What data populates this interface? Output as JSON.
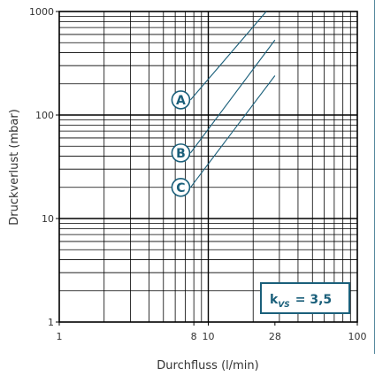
{
  "chart_data": {
    "type": "line",
    "xscale": "log",
    "yscale": "log",
    "xlabel": "Durchfluss (l/min)",
    "ylabel": "Druckverlust (mbar)",
    "xlim": [
      1,
      100
    ],
    "ylim": [
      1,
      1000
    ],
    "grid": true,
    "x_ticks": [
      {
        "value": 1,
        "label": "1"
      },
      {
        "value": 8,
        "label": "8"
      },
      {
        "value": 10,
        "label": "10"
      },
      {
        "value": 28,
        "label": "28"
      },
      {
        "value": 100,
        "label": "100"
      }
    ],
    "y_ticks": [
      {
        "value": 1,
        "label": "1"
      },
      {
        "value": 10,
        "label": "10"
      },
      {
        "value": 100,
        "label": "100"
      },
      {
        "value": 1000,
        "label": "1000"
      }
    ],
    "series": [
      {
        "name": "A",
        "points": [
          [
            7.6,
            140
          ],
          [
            24.5,
            1000
          ]
        ]
      },
      {
        "name": "B",
        "points": [
          [
            7.6,
            43
          ],
          [
            28,
            530
          ]
        ]
      },
      {
        "name": "C",
        "points": [
          [
            7.6,
            20
          ],
          [
            28,
            240
          ]
        ]
      }
    ],
    "kvs": {
      "k": "k",
      "sub": "VS",
      "value": "= 3,5"
    },
    "colors": {
      "line": "#1a5f7a",
      "grid": "#000000",
      "accent": "#1a5f7a"
    }
  }
}
